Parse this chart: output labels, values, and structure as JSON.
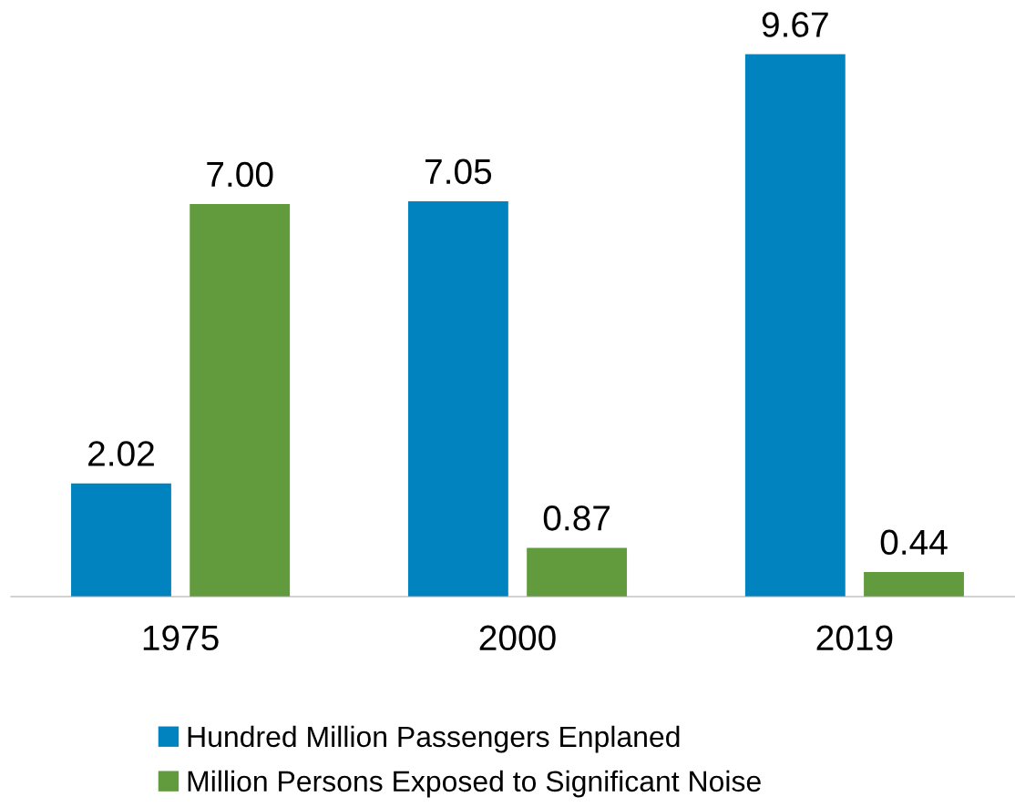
{
  "chart_data": {
    "type": "bar",
    "categories": [
      "1975",
      "2000",
      "2019"
    ],
    "series": [
      {
        "name": "Hundred Million Passengers Enplaned",
        "color": "#0083be",
        "values": [
          2.02,
          7.05,
          9.67
        ],
        "value_labels": [
          "2.02",
          "7.05",
          "9.67"
        ]
      },
      {
        "name": "Million Persons Exposed to Significant Noise",
        "color": "#629b3d",
        "values": [
          7.0,
          0.87,
          0.44
        ],
        "value_labels": [
          "7.00",
          "0.87",
          "0.44"
        ]
      }
    ],
    "legend": "bottom",
    "grid": false
  }
}
